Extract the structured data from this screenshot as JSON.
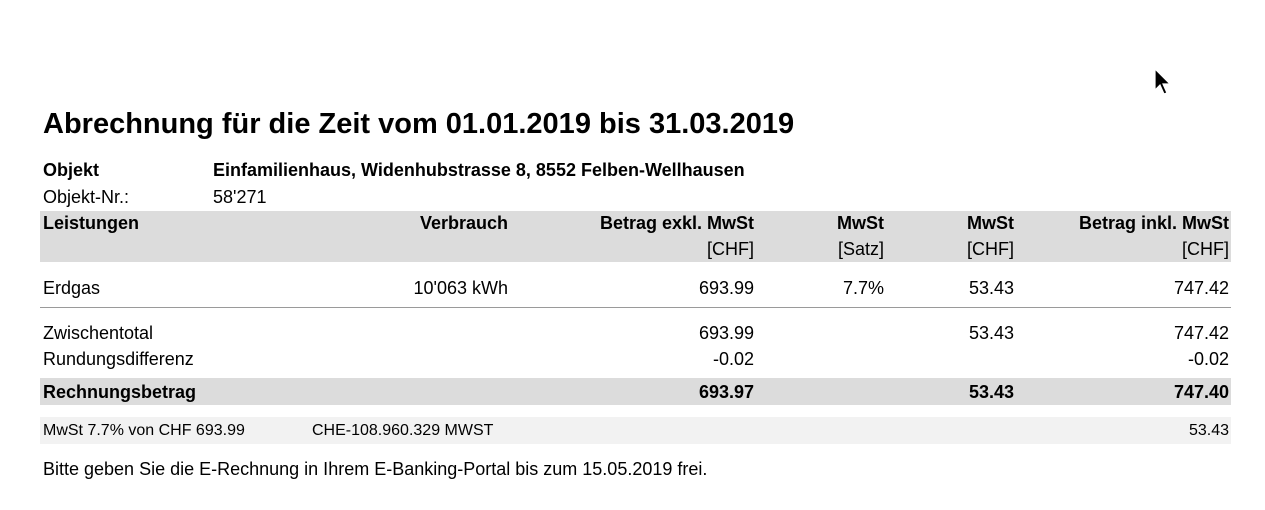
{
  "title": "Abrechnung für die Zeit vom 01.01.2019 bis 31.03.2019",
  "object": {
    "label": "Objekt",
    "value": "Einfamilienhaus, Widenhubstrasse 8, 8552 Felben-Wellhausen",
    "number_label": "Objekt-Nr.:",
    "number_value": "58'271"
  },
  "table": {
    "headers": {
      "service": "Leistungen",
      "consumption": "Verbrauch",
      "amount_excl": "Betrag exkl. MwSt",
      "amount_excl_unit": "[CHF]",
      "vat_rate": "MwSt",
      "vat_rate_unit": "[Satz]",
      "vat_amount": "MwSt",
      "vat_amount_unit": "[CHF]",
      "amount_incl": "Betrag inkl. MwSt",
      "amount_incl_unit": "[CHF]"
    },
    "rows": [
      {
        "service": "Erdgas",
        "consumption": "10'063 kWh",
        "amount_excl": "693.99",
        "vat_rate": "7.7%",
        "vat_amount": "53.43",
        "amount_incl": "747.42"
      }
    ],
    "subtotal": {
      "label": "Zwischentotal",
      "amount_excl": "693.99",
      "vat_amount": "53.43",
      "amount_incl": "747.42"
    },
    "rounding": {
      "label": "Rundungsdifferenz",
      "amount_excl": "-0.02",
      "amount_incl": "-0.02"
    },
    "total": {
      "label": "Rechnungsbetrag",
      "amount_excl": "693.97",
      "vat_amount": "53.43",
      "amount_incl": "747.40"
    },
    "vat_line": {
      "text": "MwSt 7.7% von CHF 693.99",
      "vat_number": "CHE-108.960.329 MWST",
      "amount": "53.43"
    }
  },
  "footer_note": "Bitte geben Sie die E-Rechnung in Ihrem E-Banking-Portal bis zum 15.05.2019 frei.",
  "cursor": {
    "icon": "mouse-pointer-icon"
  }
}
